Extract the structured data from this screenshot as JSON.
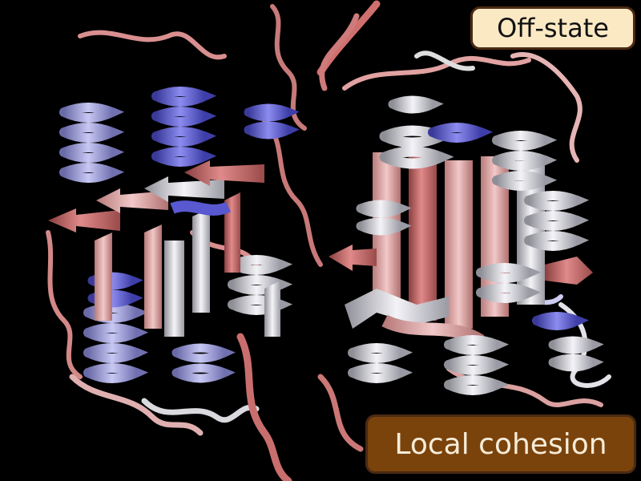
{
  "labels": {
    "state": "Off-state",
    "metric": "Local cohesion"
  },
  "colors": {
    "background": "#000000",
    "cohesion_low": "#c86a6a",
    "cohesion_mid": "#eeeeee",
    "cohesion_high": "#6a6ad8",
    "state_badge_fill": "#fbe9c4",
    "metric_badge_fill": "#7a430c",
    "badge_border": "#4a2a12"
  }
}
